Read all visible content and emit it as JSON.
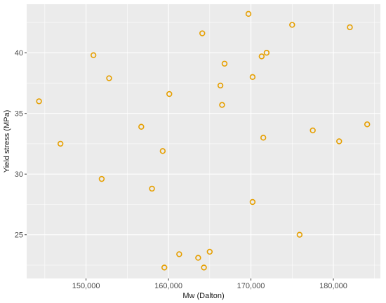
{
  "chart_data": {
    "type": "scatter",
    "title": "",
    "xlabel": "Mw (Dalton)",
    "ylabel": "Yield stress (MPa)",
    "xlim": [
      142800,
      185700
    ],
    "ylim": [
      21.4,
      44.0
    ],
    "x_ticks": [
      150000,
      160000,
      170000,
      180000
    ],
    "x_tick_labels": [
      "150,000",
      "160,000",
      "170,000",
      "180,000"
    ],
    "y_ticks": [
      25,
      30,
      35,
      40
    ],
    "y_tick_labels": [
      "25",
      "30",
      "35",
      "40"
    ],
    "grid": true,
    "point_color": "#E69F00",
    "panel_color": "#EBEBEB",
    "points": [
      {
        "x": 144300,
        "y": 36.0
      },
      {
        "x": 146900,
        "y": 32.5
      },
      {
        "x": 150900,
        "y": 39.8
      },
      {
        "x": 151900,
        "y": 29.6
      },
      {
        "x": 152800,
        "y": 37.9
      },
      {
        "x": 156700,
        "y": 33.9
      },
      {
        "x": 158000,
        "y": 28.8
      },
      {
        "x": 159300,
        "y": 31.9
      },
      {
        "x": 159500,
        "y": 22.3
      },
      {
        "x": 160100,
        "y": 36.6
      },
      {
        "x": 161300,
        "y": 23.4
      },
      {
        "x": 163600,
        "y": 23.1
      },
      {
        "x": 164100,
        "y": 41.6
      },
      {
        "x": 164300,
        "y": 22.3
      },
      {
        "x": 165000,
        "y": 23.6
      },
      {
        "x": 166300,
        "y": 37.3
      },
      {
        "x": 166500,
        "y": 35.7
      },
      {
        "x": 166800,
        "y": 39.1
      },
      {
        "x": 169700,
        "y": 43.2
      },
      {
        "x": 170200,
        "y": 38.0
      },
      {
        "x": 170200,
        "y": 27.7
      },
      {
        "x": 171300,
        "y": 39.7
      },
      {
        "x": 171500,
        "y": 33.0
      },
      {
        "x": 171900,
        "y": 40.0
      },
      {
        "x": 175000,
        "y": 42.3
      },
      {
        "x": 175900,
        "y": 25.0
      },
      {
        "x": 177500,
        "y": 33.6
      },
      {
        "x": 180700,
        "y": 32.7
      },
      {
        "x": 182000,
        "y": 42.1
      },
      {
        "x": 184100,
        "y": 34.1
      }
    ]
  }
}
